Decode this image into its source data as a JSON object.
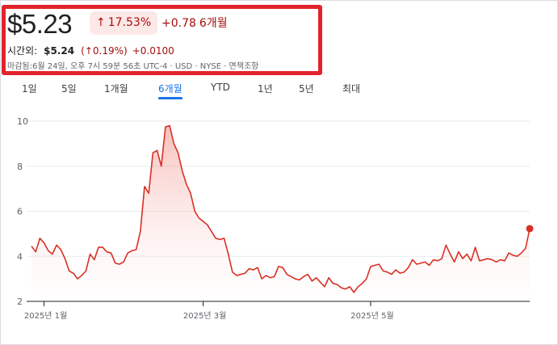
{
  "quote": {
    "price": "$5.23",
    "pct_change": "17.53%",
    "pct_arrow": "↑",
    "abs_change": "+0.78",
    "period": "6개월",
    "after_hours_label": "시간외:",
    "after_hours_price": "$5.24",
    "after_hours_pct": "(↑0.19%)",
    "after_hours_change": "+0.0100",
    "meta": "마감됨:6월 24일, 오후 7시 59분 56초 UTC-4 · USD · NYSE · 면책조항"
  },
  "tabs": [
    {
      "label": "1일",
      "active": false
    },
    {
      "label": "5일",
      "active": false
    },
    {
      "label": "1개월",
      "active": false
    },
    {
      "label": "6개월",
      "active": true
    },
    {
      "label": "YTD",
      "active": false
    },
    {
      "label": "1년",
      "active": false
    },
    {
      "label": "5년",
      "active": false
    },
    {
      "label": "최대",
      "active": false
    }
  ],
  "colors": {
    "line": "#d93025",
    "down_text": "#a50e0e",
    "badge_bg": "#fce8e6",
    "accent": "#1a73e8",
    "highlight_box": "#e1232b"
  },
  "chart_data": {
    "type": "area",
    "x_tick_labels": [
      "2025년 1월",
      "2025년 3월",
      "2025년 5월"
    ],
    "x_tick_index": [
      3,
      41,
      81
    ],
    "y_ticks": [
      2,
      4,
      6,
      8,
      10
    ],
    "ylim": [
      2,
      10
    ],
    "grid": true,
    "values": [
      4.45,
      4.2,
      4.8,
      4.6,
      4.25,
      4.1,
      4.5,
      4.3,
      3.9,
      3.35,
      3.25,
      3.0,
      3.15,
      3.35,
      4.1,
      3.85,
      4.4,
      4.4,
      4.2,
      4.15,
      3.7,
      3.65,
      3.75,
      4.15,
      4.25,
      4.3,
      5.1,
      7.1,
      6.8,
      8.6,
      8.7,
      8.0,
      9.75,
      9.8,
      9.0,
      8.6,
      7.8,
      7.2,
      6.8,
      6.0,
      5.7,
      5.55,
      5.4,
      5.1,
      4.8,
      4.75,
      4.8,
      4.1,
      3.3,
      3.15,
      3.2,
      3.25,
      3.45,
      3.4,
      3.5,
      3.0,
      3.15,
      3.05,
      3.1,
      3.55,
      3.5,
      3.2,
      3.1,
      3.0,
      2.95,
      3.1,
      3.2,
      2.9,
      3.05,
      2.85,
      2.65,
      3.05,
      2.8,
      2.75,
      2.6,
      2.55,
      2.65,
      2.4,
      2.65,
      2.8,
      3.0,
      3.55,
      3.6,
      3.65,
      3.35,
      3.3,
      3.2,
      3.4,
      3.25,
      3.3,
      3.5,
      3.85,
      3.65,
      3.7,
      3.75,
      3.6,
      3.85,
      3.8,
      3.9,
      4.5,
      4.1,
      3.75,
      4.2,
      3.9,
      4.1,
      3.8,
      4.4,
      3.8,
      3.85,
      3.9,
      3.85,
      3.75,
      3.85,
      3.8,
      4.15,
      4.05,
      4.0,
      4.15,
      4.35,
      5.23
    ],
    "last_value": 5.23
  }
}
